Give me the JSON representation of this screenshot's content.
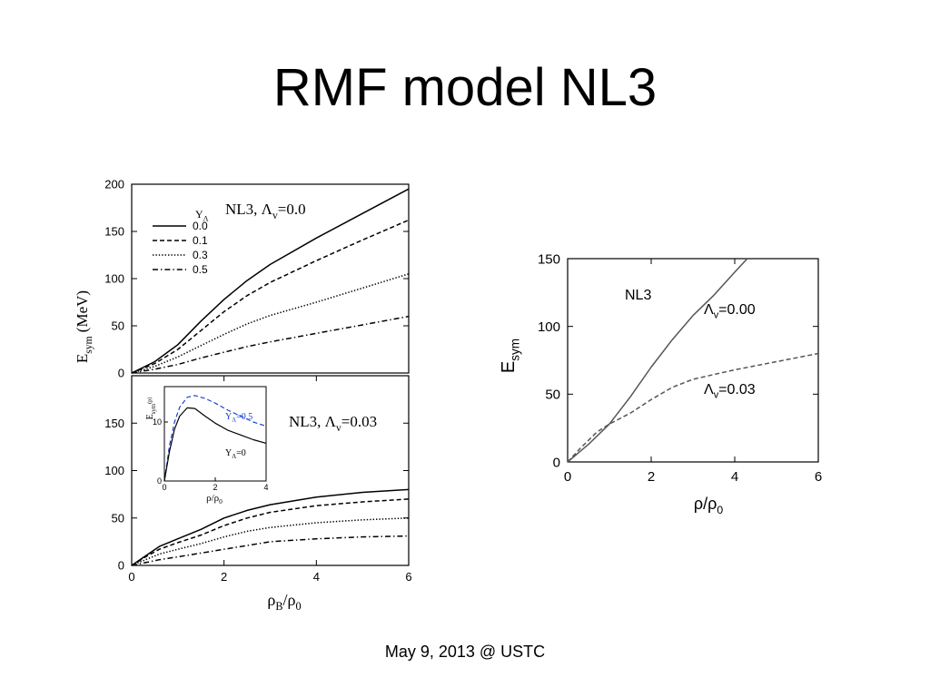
{
  "slide": {
    "title": "RMF model NL3",
    "footer": "May 9, 2013 @ USTC"
  },
  "chart_data": [
    {
      "id": "left-top",
      "type": "line",
      "title": "NL3, Λv=0.0",
      "title_main": "NL3, Λ",
      "title_sub": "v",
      "title_tail": "=0.0",
      "ylabel": "E",
      "ylabel_sub": "sym",
      "ylabel_tail": "(MeV)",
      "xlim": [
        0,
        6
      ],
      "ylim": [
        0,
        200
      ],
      "yticks": [
        "0",
        "50",
        "100",
        "150",
        "200"
      ],
      "legend_title": "Y",
      "legend_title_sub": "Λ",
      "legend_placement": "upper-left",
      "series": [
        {
          "name": "0.0",
          "style": "solid",
          "points": [
            [
              0,
              0
            ],
            [
              0.5,
              12
            ],
            [
              1,
              30
            ],
            [
              1.5,
              55
            ],
            [
              2,
              78
            ],
            [
              2.5,
              98
            ],
            [
              3,
              115
            ],
            [
              4,
              143
            ],
            [
              5,
              169
            ],
            [
              6,
              195
            ]
          ]
        },
        {
          "name": "0.1",
          "style": "dashed",
          "points": [
            [
              0,
              0
            ],
            [
              0.5,
              10
            ],
            [
              1,
              25
            ],
            [
              1.5,
              45
            ],
            [
              2,
              65
            ],
            [
              2.5,
              82
            ],
            [
              3,
              96
            ],
            [
              4,
              119
            ],
            [
              5,
              141
            ],
            [
              6,
              162
            ]
          ]
        },
        {
          "name": "0.3",
          "style": "dotted",
          "points": [
            [
              0,
              0
            ],
            [
              0.5,
              7
            ],
            [
              1,
              17
            ],
            [
              1.5,
              29
            ],
            [
              2,
              41
            ],
            [
              2.5,
              52
            ],
            [
              3,
              61
            ],
            [
              4,
              75
            ],
            [
              5,
              90
            ],
            [
              6,
              105
            ]
          ]
        },
        {
          "name": "0.5",
          "style": "dashdot",
          "points": [
            [
              0,
              0
            ],
            [
              0.5,
              4
            ],
            [
              1,
              9
            ],
            [
              1.5,
              16
            ],
            [
              2,
              22
            ],
            [
              2.5,
              28
            ],
            [
              3,
              33
            ],
            [
              4,
              42
            ],
            [
              5,
              51
            ],
            [
              6,
              60
            ]
          ]
        }
      ]
    },
    {
      "id": "left-bottom",
      "type": "line",
      "title": "NL3, Λv=0.03",
      "title_main": "NL3, Λ",
      "title_sub": "v",
      "title_tail": "=0.03",
      "xlabel": "ρ",
      "xlabel_sub": "B",
      "xlabel_tail": "/ρ",
      "xlabel_sub2": "0",
      "xlim": [
        0,
        6
      ],
      "ylim": [
        0,
        200
      ],
      "xticks": [
        "0",
        "2",
        "4",
        "6"
      ],
      "yticks": [
        "0",
        "50",
        "100",
        "150"
      ],
      "series": [
        {
          "name": "0.0",
          "style": "solid",
          "points": [
            [
              0,
              0
            ],
            [
              0.3,
              10
            ],
            [
              0.6,
              20
            ],
            [
              1,
              28
            ],
            [
              1.5,
              38
            ],
            [
              2,
              50
            ],
            [
              2.5,
              58
            ],
            [
              3,
              64
            ],
            [
              4,
              72
            ],
            [
              5,
              77
            ],
            [
              6,
              80
            ]
          ]
        },
        {
          "name": "0.1",
          "style": "dashed",
          "points": [
            [
              0,
              0
            ],
            [
              0.3,
              9
            ],
            [
              0.6,
              17
            ],
            [
              1,
              24
            ],
            [
              1.5,
              32
            ],
            [
              2,
              42
            ],
            [
              2.5,
              50
            ],
            [
              3,
              56
            ],
            [
              4,
              63
            ],
            [
              5,
              67
            ],
            [
              6,
              70
            ]
          ]
        },
        {
          "name": "0.3",
          "style": "dotted",
          "points": [
            [
              0,
              0
            ],
            [
              0.3,
              6
            ],
            [
              0.6,
              12
            ],
            [
              1,
              17
            ],
            [
              1.5,
              23
            ],
            [
              2,
              30
            ],
            [
              2.5,
              36
            ],
            [
              3,
              40
            ],
            [
              4,
              45
            ],
            [
              5,
              48
            ],
            [
              6,
              50
            ]
          ]
        },
        {
          "name": "0.5",
          "style": "dashdot",
          "points": [
            [
              0,
              0
            ],
            [
              0.3,
              3
            ],
            [
              0.6,
              6
            ],
            [
              1,
              9
            ],
            [
              1.5,
              13
            ],
            [
              2,
              17
            ],
            [
              2.5,
              21
            ],
            [
              3,
              25
            ],
            [
              4,
              28
            ],
            [
              5,
              30
            ],
            [
              6,
              31
            ]
          ]
        }
      ],
      "inset": {
        "ylabel": "E",
        "ylabel_sub": "sym",
        "ylabel_sup": "(p)",
        "xlabel": "ρ/ρ",
        "xlabel_sub": "0",
        "xlim": [
          0,
          4
        ],
        "ylim": [
          0,
          16
        ],
        "xticks": [
          "0",
          "2",
          "4"
        ],
        "yticks": [
          "0",
          "10"
        ],
        "series": [
          {
            "name": "Y",
            "name_sub": "Λ",
            "name_tail": "=0.5",
            "style": "dashed",
            "color": "#1a3fd6",
            "points": [
              [
                0,
                0
              ],
              [
                0.2,
                6
              ],
              [
                0.4,
                10
              ],
              [
                0.6,
                12.5
              ],
              [
                0.9,
                14.2
              ],
              [
                1.2,
                14.5
              ],
              [
                1.6,
                14
              ],
              [
                2,
                13.2
              ],
              [
                2.5,
                12
              ],
              [
                3,
                11
              ],
              [
                3.5,
                10
              ],
              [
                4,
                9.3
              ]
            ]
          },
          {
            "name": "Y",
            "name_sub": "Λ",
            "name_tail": "=0",
            "style": "solid",
            "color": "#000000",
            "points": [
              [
                0,
                0
              ],
              [
                0.2,
                5
              ],
              [
                0.4,
                8.8
              ],
              [
                0.6,
                11
              ],
              [
                0.9,
                12.4
              ],
              [
                1.2,
                12.3
              ],
              [
                1.6,
                11
              ],
              [
                2,
                9.8
              ],
              [
                2.5,
                8.6
              ],
              [
                3,
                7.8
              ],
              [
                3.5,
                7
              ],
              [
                4,
                6.4
              ]
            ]
          }
        ]
      }
    },
    {
      "id": "right",
      "type": "line",
      "title": "NL3",
      "ylabel": "E",
      "ylabel_sub": "sym",
      "xlabel": "ρ/ρ",
      "xlabel_sub": "0",
      "xlim": [
        0,
        6
      ],
      "ylim": [
        0,
        150
      ],
      "xticks": [
        "0",
        "2",
        "4",
        "6"
      ],
      "yticks": [
        "0",
        "50",
        "100",
        "150"
      ],
      "series": [
        {
          "name": "Λ",
          "name_sub": "v",
          "name_tail": "=0.00",
          "style": "solid",
          "color": "#555555",
          "points": [
            [
              0,
              0
            ],
            [
              0.5,
              13
            ],
            [
              1,
              28
            ],
            [
              1.5,
              48
            ],
            [
              2,
              70
            ],
            [
              2.5,
              90
            ],
            [
              3,
              108
            ],
            [
              3.5,
              123
            ],
            [
              4,
              140
            ],
            [
              4.3,
              150
            ]
          ]
        },
        {
          "name": "Λ",
          "name_sub": "v",
          "name_tail": "=0.03",
          "style": "dashed",
          "color": "#555555",
          "points": [
            [
              0,
              0
            ],
            [
              0.3,
              10
            ],
            [
              0.7,
              22
            ],
            [
              1,
              28
            ],
            [
              1.5,
              36
            ],
            [
              2,
              46
            ],
            [
              2.5,
              55
            ],
            [
              3,
              61
            ],
            [
              4,
              68
            ],
            [
              5,
              74
            ],
            [
              6,
              80
            ]
          ]
        }
      ]
    }
  ]
}
